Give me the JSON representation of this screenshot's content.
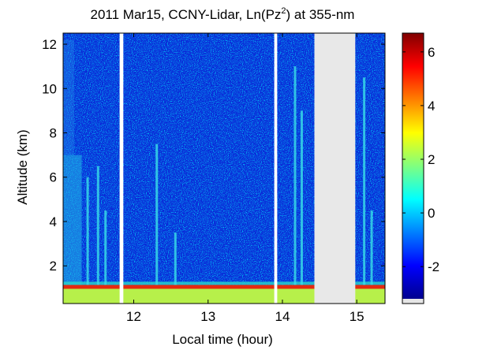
{
  "chart_data": {
    "type": "heatmap",
    "title_main": "2011 Mar15, CCNY-Lidar, Ln(Pz",
    "title_sup": "2",
    "title_tail": ") at 355-nm",
    "xlabel": "Local time (hour)",
    "ylabel": "Altitude (km)",
    "xlim": [
      11.05,
      15.38
    ],
    "ylim": [
      0.3,
      12.5
    ],
    "xticks": [
      12,
      13,
      14,
      15
    ],
    "xtick_labels": [
      "12",
      "13",
      "14",
      "15"
    ],
    "yticks": [
      2,
      4,
      6,
      8,
      10,
      12
    ],
    "ytick_labels": [
      "2",
      "4",
      "6",
      "8",
      "10",
      "12"
    ],
    "colorbar": {
      "range": [
        -3.2,
        6.7
      ],
      "ticks": [
        -2,
        0,
        2,
        4,
        6
      ],
      "tick_labels": [
        "-2",
        "0",
        "2",
        "4",
        "6"
      ],
      "colormap": "jet"
    },
    "data_gaps_hours": [
      [
        11.81,
        11.86
      ],
      [
        13.89,
        13.93
      ],
      [
        14.43,
        14.98
      ]
    ],
    "boundary_layer_top_km": 1.0,
    "aerosol_plumes": [
      {
        "time": 11.38,
        "top_km": 6.0
      },
      {
        "time": 11.52,
        "top_km": 6.5
      },
      {
        "time": 11.62,
        "top_km": 4.5
      },
      {
        "time": 12.31,
        "top_km": 7.5
      },
      {
        "time": 12.56,
        "top_km": 3.5
      },
      {
        "time": 14.17,
        "top_km": 11.0
      },
      {
        "time": 14.26,
        "top_km": 9.0
      },
      {
        "time": 15.1,
        "top_km": 10.5
      },
      {
        "time": 15.2,
        "top_km": 4.5
      }
    ]
  }
}
